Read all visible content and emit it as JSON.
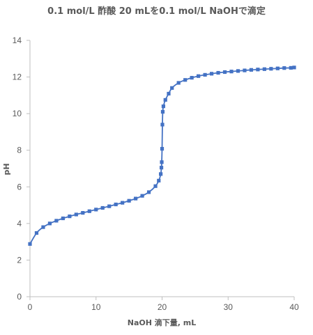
{
  "chart_data": {
    "type": "scatter",
    "title": "0.1 mol/L 酢酸 20 mLを0.1 mol/L NaOHで滴定",
    "xlabel": "NaOH 滴下量, mL",
    "ylabel": "pH",
    "xlim": [
      0,
      40
    ],
    "ylim": [
      0,
      14
    ],
    "x_ticks": [
      "0",
      "10",
      "20",
      "30",
      "40"
    ],
    "y_ticks": [
      "0",
      "2",
      "4",
      "6",
      "8",
      "10",
      "12",
      "14"
    ],
    "grid": false,
    "legend": "none",
    "series": [
      {
        "color": "#4472C4",
        "marker": "square",
        "line": "smooth",
        "points": [
          [
            0,
            2.88
          ],
          [
            1,
            3.48
          ],
          [
            2,
            3.8
          ],
          [
            3,
            4.0
          ],
          [
            4,
            4.15
          ],
          [
            5,
            4.28
          ],
          [
            6,
            4.39
          ],
          [
            7,
            4.49
          ],
          [
            8,
            4.58
          ],
          [
            9,
            4.67
          ],
          [
            10,
            4.76
          ],
          [
            11,
            4.85
          ],
          [
            12,
            4.94
          ],
          [
            13,
            5.04
          ],
          [
            14,
            5.13
          ],
          [
            15,
            5.24
          ],
          [
            16,
            5.36
          ],
          [
            17,
            5.51
          ],
          [
            18,
            5.71
          ],
          [
            19,
            6.04
          ],
          [
            19.5,
            6.34
          ],
          [
            19.8,
            6.7
          ],
          [
            19.9,
            7.05
          ],
          [
            19.95,
            7.35
          ],
          [
            20,
            8.08
          ],
          [
            20.05,
            9.4
          ],
          [
            20.1,
            10.1
          ],
          [
            20.2,
            10.4
          ],
          [
            20.5,
            10.75
          ],
          [
            21,
            11.09
          ],
          [
            21.5,
            11.4
          ],
          [
            22.5,
            11.68
          ],
          [
            23.5,
            11.84
          ],
          [
            24.5,
            11.96
          ],
          [
            25.5,
            12.05
          ],
          [
            26.5,
            12.12
          ],
          [
            27.5,
            12.18
          ],
          [
            28.5,
            12.23
          ],
          [
            29.5,
            12.27
          ],
          [
            30.5,
            12.3
          ],
          [
            31.5,
            12.33
          ],
          [
            32.5,
            12.36
          ],
          [
            33.5,
            12.39
          ],
          [
            34.5,
            12.41
          ],
          [
            35.5,
            12.43
          ],
          [
            36.5,
            12.45
          ],
          [
            37.5,
            12.47
          ],
          [
            38.5,
            12.49
          ],
          [
            39.5,
            12.5
          ],
          [
            40,
            12.52
          ]
        ]
      }
    ]
  }
}
